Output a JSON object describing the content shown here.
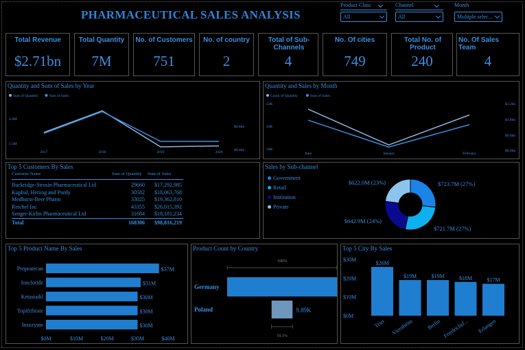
{
  "header": {
    "title": "PHARMACEUTICAL SALES ANALYSIS"
  },
  "filters": [
    {
      "label": "Product Class",
      "value": "All"
    },
    {
      "label": "Channel",
      "value": "All"
    },
    {
      "label": "Month",
      "value": "Multiple selec..."
    }
  ],
  "kpis": [
    {
      "label": "Total Revenue",
      "value": "$2.71bn"
    },
    {
      "label": "Total Quantity",
      "value": "7M"
    },
    {
      "label": "No. of Customers",
      "value": "751"
    },
    {
      "label": "No. of country",
      "value": "2"
    },
    {
      "label": "Total of Sub-Channels",
      "value": "4"
    },
    {
      "label": "No. Of cities",
      "value": "749"
    },
    {
      "label": "Total No. of Product",
      "value": "240"
    },
    {
      "label": "No. Of Sales Team",
      "value": "4"
    }
  ],
  "colors": {
    "primary": "#3b8fe0",
    "secondary": "#8ab6de",
    "background": "#000000"
  },
  "chart_data": [
    {
      "type": "line",
      "title": "Quantity and Sum of Sales by Year",
      "legend": [
        "Sum of Quantity",
        "Sum of Sales"
      ],
      "x": [
        "2017",
        "2018",
        "2019",
        "2020"
      ],
      "left_ticks": [
        "2.0M",
        "1.5M"
      ],
      "right_ticks": [
        "$0.8bn",
        "$0.6bn"
      ],
      "series": [
        {
          "name": "Sum of Quantity",
          "values": [
            1.6,
            2.05,
            1.3,
            1.32
          ],
          "axis": "left",
          "ylim": [
            1.2,
            2.2
          ]
        },
        {
          "name": "Sum of Sales",
          "values": [
            0.66,
            0.85,
            0.59,
            0.59
          ],
          "axis": "right",
          "ylim": [
            0.5,
            0.92
          ]
        }
      ]
    },
    {
      "type": "line",
      "title": "Quantity and Sales by Month",
      "legend": [
        "Count of Quantity",
        "Sum of Sales"
      ],
      "x": [
        "June",
        "January",
        "February"
      ],
      "left_ticks": [
        "22K",
        "20K",
        "18K"
      ],
      "right_ticks": [
        "$1.2bn",
        "$1.0bn",
        "$0.8bn",
        "$0.6bn"
      ],
      "series": [
        {
          "name": "Count of Quantity",
          "values": [
            21.7,
            18.6,
            21.2
          ],
          "axis": "left",
          "ylim": [
            17.9,
            22.3
          ]
        },
        {
          "name": "Sum of Sales",
          "values": [
            1.0,
            0.64,
            0.94
          ],
          "axis": "right",
          "ylim": [
            0.56,
            1.24
          ]
        }
      ]
    },
    {
      "type": "table",
      "title": "Top 5 Customers By Sales",
      "columns": [
        "Customer Name",
        "Sum of Quantity",
        "Sum of Sales"
      ],
      "rows": [
        [
          "Buckridge-Strosin Pharmaceutical Ltd",
          "29660",
          "$17,292,985"
        ],
        [
          "Kuphal, Herzog and Purdy",
          "30582",
          "$18,063,768"
        ],
        [
          "Medhurst-Beer Pharm",
          "33025",
          "$19,362,810"
        ],
        [
          "Reichel Inc",
          "43355",
          "$26,015,392"
        ],
        [
          "Senger-Kirlin Pharmaceutical Ltd",
          "31684",
          "$18,181,234"
        ]
      ],
      "total": [
        "Total",
        "168306",
        "$98,816,219"
      ]
    },
    {
      "type": "pie",
      "title": "Sales by Sub-channel",
      "legend": [
        "Government",
        "Retail",
        "Institution",
        "Private"
      ],
      "slices": [
        {
          "name": "Government",
          "label": "$723.7M (27%)",
          "value": 723.7,
          "color": "#1a84e8"
        },
        {
          "name": "Retail",
          "label": "$721.7M (27%)",
          "value": 721.7,
          "color": "#0fb0ef"
        },
        {
          "name": "Institution",
          "label": "$642.9M (24%)",
          "value": 642.9,
          "color": "#0a0a8e"
        },
        {
          "name": "Private",
          "label": "$622.0M (23%)",
          "value": 622.0,
          "color": "#8cc4ec"
        }
      ]
    },
    {
      "type": "bar",
      "orientation": "horizontal",
      "title": "Top 5 Product Name By Sales",
      "categories": [
        "Propratecan",
        "Ionclotide",
        "Ketastadil",
        "Topifribrate",
        "Insozyme"
      ],
      "values": [
        37,
        31,
        30,
        30,
        30
      ],
      "labels": [
        "$37M",
        "$31M",
        "$30M",
        "$30M",
        "$30M"
      ],
      "xticks": [
        "$0M",
        "$10M",
        "$20M",
        "$30M",
        "$40M"
      ],
      "xlim": [
        0,
        40
      ]
    },
    {
      "type": "bar",
      "orientation": "funnel",
      "title": "Product Count by Country",
      "categories": [
        "Germany",
        "Poland"
      ],
      "values": [
        100,
        19.1
      ],
      "value_labels": [
        "",
        "9.89K"
      ],
      "top_pct": "100%",
      "bottom_pct": "19.1%"
    },
    {
      "type": "bar",
      "title": "Top 5 City By Sales",
      "categories": [
        "Trier",
        "Viernheim",
        "Berlin",
        "Friedrichsf...",
        "Erlangen"
      ],
      "values": [
        26,
        19,
        19,
        18,
        17
      ],
      "labels": [
        "$26M",
        "$19M",
        "$19M",
        "$18M",
        "$17M"
      ],
      "yticks": [
        "$30M",
        "$20M",
        "$10M",
        "$0M"
      ],
      "ylim": [
        0,
        30
      ]
    }
  ]
}
